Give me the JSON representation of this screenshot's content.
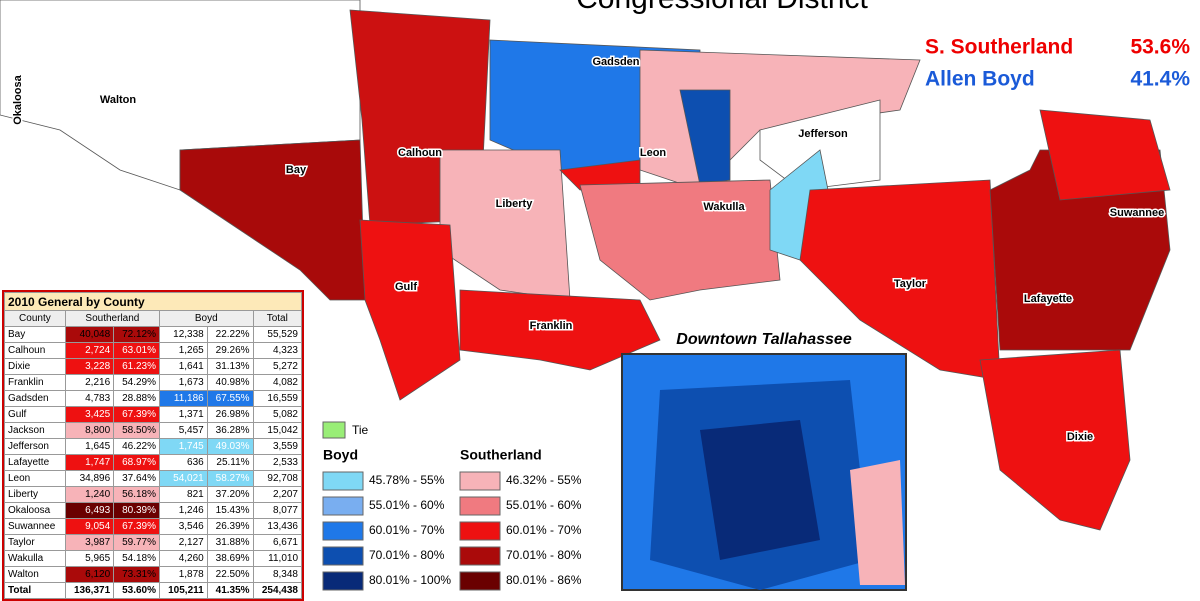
{
  "title": "Congressional District",
  "results": [
    {
      "name": "S. Southerland",
      "pct": "53.6%"
    },
    {
      "name": "Allen Boyd",
      "pct": "41.4%"
    }
  ],
  "counties": [
    "Okaloosa",
    "Walton",
    "Bay",
    "Calhoun",
    "Gadsden",
    "Leon",
    "Jefferson",
    "Liberty",
    "Wakulla",
    "Gulf",
    "Franklin",
    "Taylor",
    "Suwannee",
    "Lafayette",
    "Dixie"
  ],
  "inset_title": "Downtown Tallahassee",
  "legend": {
    "tie": {
      "label": "Tie",
      "color": "#99ee77"
    },
    "groups": [
      {
        "title": "Boyd",
        "items": [
          {
            "label": "45.78% - 55%",
            "color": "#7fd8f5"
          },
          {
            "label": "55.01% - 60%",
            "color": "#79aef0"
          },
          {
            "label": "60.01% - 70%",
            "color": "#1f78e8"
          },
          {
            "label": "70.01% - 80%",
            "color": "#0d4fb0"
          },
          {
            "label": "80.01% - 100%",
            "color": "#082a78"
          }
        ]
      },
      {
        "title": "Southerland",
        "items": [
          {
            "label": "46.32% - 55%",
            "color": "#f7b3b8"
          },
          {
            "label": "55.01% - 60%",
            "color": "#f07a80"
          },
          {
            "label": "60.01% - 70%",
            "color": "#ee1111"
          },
          {
            "label": "70.01% - 80%",
            "color": "#aa0a0a"
          },
          {
            "label": "80.01% - 86%",
            "color": "#6a0000"
          }
        ]
      }
    ]
  },
  "table": {
    "title": "2010 General by County",
    "header": [
      "County",
      "Southerland",
      "Boyd",
      "Total"
    ],
    "rows": [
      [
        "Bay",
        "40,048",
        "72.12%",
        "12,338",
        "22.22%",
        "55,529"
      ],
      [
        "Calhoun",
        "2,724",
        "63.01%",
        "1,265",
        "29.26%",
        "4,323"
      ],
      [
        "Dixie",
        "3,228",
        "61.23%",
        "1,641",
        "31.13%",
        "5,272"
      ],
      [
        "Franklin",
        "2,216",
        "54.29%",
        "1,673",
        "40.98%",
        "4,082"
      ],
      [
        "Gadsden",
        "4,783",
        "28.88%",
        "11,186",
        "67.55%",
        "16,559"
      ],
      [
        "Gulf",
        "3,425",
        "67.39%",
        "1,371",
        "26.98%",
        "5,082"
      ],
      [
        "Jackson",
        "8,800",
        "58.50%",
        "5,457",
        "36.28%",
        "15,042"
      ],
      [
        "Jefferson",
        "1,645",
        "46.22%",
        "1,745",
        "49.03%",
        "3,559"
      ],
      [
        "Lafayette",
        "1,747",
        "68.97%",
        "636",
        "25.11%",
        "2,533"
      ],
      [
        "Leon",
        "34,896",
        "37.64%",
        "54,021",
        "58.27%",
        "92,708"
      ],
      [
        "Liberty",
        "1,240",
        "56.18%",
        "821",
        "37.20%",
        "2,207"
      ],
      [
        "Okaloosa",
        "6,493",
        "80.39%",
        "1,246",
        "15.43%",
        "8,077"
      ],
      [
        "Suwannee",
        "9,054",
        "67.39%",
        "3,546",
        "26.39%",
        "13,436"
      ],
      [
        "Taylor",
        "3,987",
        "59.77%",
        "2,127",
        "31.88%",
        "6,671"
      ],
      [
        "Wakulla",
        "5,965",
        "54.18%",
        "4,260",
        "38.69%",
        "11,010"
      ],
      [
        "Walton",
        "6,120",
        "73.31%",
        "1,878",
        "22.50%",
        "8,348"
      ]
    ],
    "total": [
      "Total",
      "136,371",
      "53.60%",
      "105,211",
      "41.35%",
      "254,438"
    ]
  }
}
